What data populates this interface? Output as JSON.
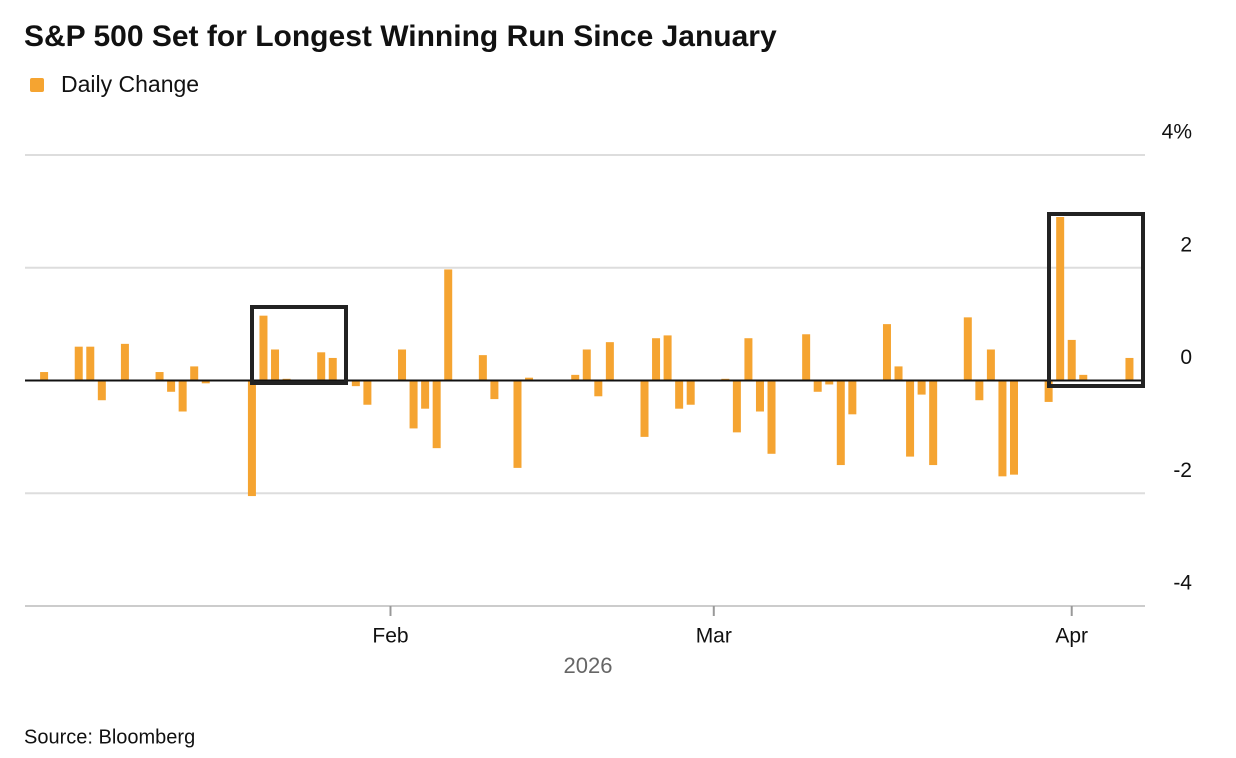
{
  "chart_data": {
    "type": "bar",
    "title": "S&P 500 Set for Longest Winning Run Since January",
    "x_label": "2026",
    "source": "Source: Bloomberg",
    "x": [
      "2026-01-02",
      "2026-01-05",
      "2026-01-06",
      "2026-01-07",
      "2026-01-09",
      "2026-01-12",
      "2026-01-13",
      "2026-01-14",
      "2026-01-15",
      "2026-01-16",
      "2026-01-20",
      "2026-01-21",
      "2026-01-22",
      "2026-01-23",
      "2026-01-26",
      "2026-01-27",
      "2026-01-28",
      "2026-01-29",
      "2026-01-30",
      "2026-02-02",
      "2026-02-03",
      "2026-02-04",
      "2026-02-05",
      "2026-02-06",
      "2026-02-09",
      "2026-02-10",
      "2026-02-12",
      "2026-02-13",
      "2026-02-17",
      "2026-02-18",
      "2026-02-19",
      "2026-02-20",
      "2026-02-23",
      "2026-02-24",
      "2026-02-25",
      "2026-02-26",
      "2026-02-27",
      "2026-03-02",
      "2026-03-03",
      "2026-03-04",
      "2026-03-05",
      "2026-03-06",
      "2026-03-09",
      "2026-03-10",
      "2026-03-11",
      "2026-03-12",
      "2026-03-13",
      "2026-03-16",
      "2026-03-17",
      "2026-03-18",
      "2026-03-19",
      "2026-03-20",
      "2026-03-23",
      "2026-03-24",
      "2026-03-25",
      "2026-03-26",
      "2026-03-27",
      "2026-03-30",
      "2026-03-31",
      "2026-04-01",
      "2026-04-02",
      "2026-04-06"
    ],
    "series": [
      {
        "name": "Daily Change",
        "color": "#f5a431",
        "values": [
          0.15,
          0.6,
          0.6,
          -0.35,
          0.65,
          0.15,
          -0.2,
          -0.55,
          0.25,
          -0.05,
          -2.05,
          1.15,
          0.55,
          0.03,
          0.5,
          0.4,
          0.01,
          -0.1,
          -0.43,
          0.55,
          -0.85,
          -0.5,
          -1.2,
          1.97,
          0.45,
          -0.33,
          -1.55,
          0.05,
          0.1,
          0.55,
          -0.28,
          0.68,
          -1.0,
          0.75,
          0.8,
          -0.5,
          -0.43,
          0.03,
          -0.92,
          0.75,
          -0.55,
          -1.3,
          0.82,
          -0.2,
          -0.07,
          -1.5,
          -0.6,
          1.0,
          0.25,
          -1.35,
          -0.25,
          -1.5,
          1.12,
          -0.35,
          0.55,
          -1.7,
          -1.67,
          -0.38,
          2.9,
          0.72,
          0.1,
          0.4
        ]
      }
    ],
    "xlim": [
      "2025-12-31",
      "2026-04-07"
    ],
    "xticks": [
      {
        "value": "2026-02-01",
        "label": "Feb"
      },
      {
        "value": "2026-03-01",
        "label": "Mar"
      },
      {
        "value": "2026-04-01",
        "label": "Apr"
      }
    ],
    "ylim": [
      -4,
      4
    ],
    "yticks": [
      {
        "value": 4,
        "label": "4%"
      },
      2,
      0,
      -2,
      -4
    ],
    "grid": true
  }
}
